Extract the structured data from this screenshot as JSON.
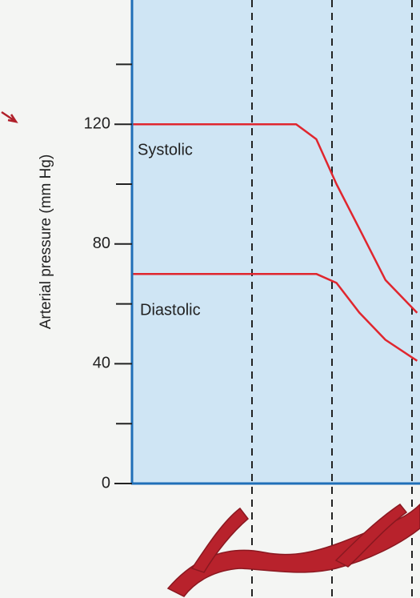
{
  "chart_data": {
    "type": "line",
    "y_label": "Arterial pressure (mm Hg)",
    "x": [
      0,
      10,
      20,
      30,
      40,
      50,
      57,
      64,
      71,
      79,
      88,
      99
    ],
    "xlim": [
      0,
      100
    ],
    "series": [
      {
        "name": "Systolic",
        "color": "#e0262e",
        "values": [
          120,
          120,
          120,
          120,
          120,
          120,
          120,
          115,
          100,
          85,
          68,
          57
        ]
      },
      {
        "name": "Diastolic",
        "color": "#e0262e",
        "values": [
          70,
          70,
          70,
          70,
          70,
          70,
          70,
          70,
          67,
          57,
          48,
          41
        ]
      }
    ],
    "ylim": [
      0,
      161.5
    ],
    "yticks": [
      0,
      40,
      80,
      120
    ],
    "minor_yticks": [
      20,
      60,
      100,
      140
    ]
  }
}
